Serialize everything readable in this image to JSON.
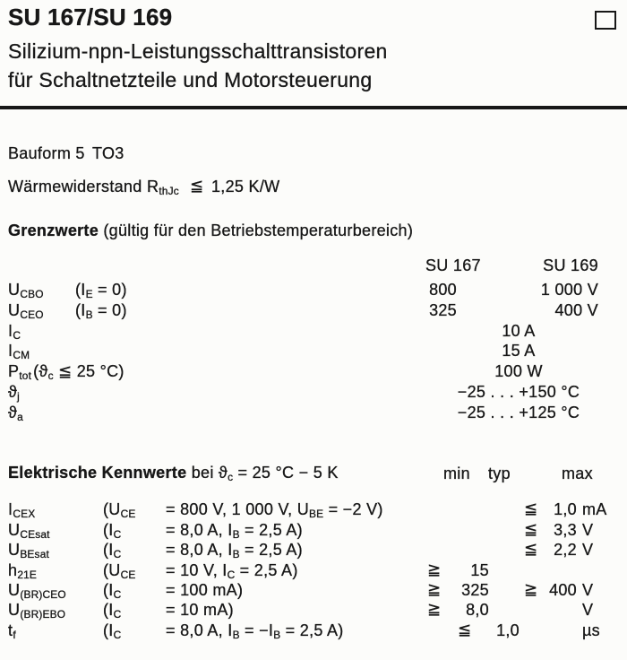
{
  "theme": {
    "ink": "#171717",
    "paper": "#fcfcfa"
  },
  "header": {
    "title": "SU 167/SU 169",
    "subtitle1": "Silizium-npn-Leistungsschalttransistoren",
    "subtitle2": "für Schaltnetzteile und Motorsteuerung"
  },
  "package": {
    "label": "Bauform 5",
    "value": "TO3"
  },
  "thermal": {
    "label": "Wärmewiderstand",
    "symbol": [
      {
        "t": "R"
      },
      {
        "s": "thJc"
      }
    ],
    "relation": "≦",
    "value": "1,25 K/W"
  },
  "grenzwerte": {
    "heading": "Grenzwerte",
    "heading_note": "(gültig für den Betriebstemperaturbereich)",
    "col1": "SU 167",
    "col2": "SU 169",
    "rows": [
      {
        "sym": [
          {
            "t": "U"
          },
          {
            "s": "CBO"
          }
        ],
        "cond": [
          {
            "t": "(I"
          },
          {
            "s": "E"
          },
          {
            "t": " = 0)"
          }
        ],
        "v167": "800",
        "v169": "1 000 V",
        "vspan": ""
      },
      {
        "sym": [
          {
            "t": "U"
          },
          {
            "s": "CEO"
          }
        ],
        "cond": [
          {
            "t": "(I"
          },
          {
            "s": "B"
          },
          {
            "t": " = 0)"
          }
        ],
        "v167": "325",
        "v169": "400 V",
        "vspan": ""
      },
      {
        "sym": [
          {
            "t": "I"
          },
          {
            "s": "C"
          }
        ],
        "cond": [],
        "v167": "",
        "v169": "",
        "vspan": "10 A"
      },
      {
        "sym": [
          {
            "t": "I"
          },
          {
            "s": "CM"
          }
        ],
        "cond": [],
        "v167": "",
        "v169": "",
        "vspan": "15 A"
      },
      {
        "sym": [
          {
            "t": "P"
          },
          {
            "s": "tot"
          }
        ],
        "cond": [
          {
            "t": " (ϑ"
          },
          {
            "s": "c"
          },
          {
            "t": " ≦ 25 °C)"
          }
        ],
        "v167": "",
        "v169": "",
        "vspan": "100 W"
      },
      {
        "sym": [
          {
            "t": "ϑ"
          },
          {
            "s": "j"
          }
        ],
        "cond": [],
        "v167": "",
        "v169": "",
        "vspan": "−25 . . . +150 °C"
      },
      {
        "sym": [
          {
            "t": "ϑ"
          },
          {
            "s": "a"
          }
        ],
        "cond": [],
        "v167": "",
        "v169": "",
        "vspan": "−25 . . . +125 °C"
      }
    ]
  },
  "kennwerte": {
    "heading": "Elektrische Kennwerte",
    "heading_note": [
      {
        "t": " bei ϑ"
      },
      {
        "s": "c"
      },
      {
        "t": " = 25 °C − 5 K"
      }
    ],
    "col_min": "min",
    "col_typ": "typ",
    "col_max": "max",
    "rows": [
      {
        "sym": [
          {
            "t": "I"
          },
          {
            "s": "CEX"
          }
        ],
        "cond_a": [
          {
            "t": "(U"
          },
          {
            "s": "CE"
          }
        ],
        "cond_b": [
          {
            "t": "= 800 V, 1 000 V, U"
          },
          {
            "s": "BE"
          },
          {
            "t": " = −2 V)"
          }
        ],
        "min_rel": "",
        "min_val": "",
        "typ_rel": "",
        "typ_val": "",
        "max_rel": "≦",
        "max_val": "1,0",
        "max_unit": "mA"
      },
      {
        "sym": [
          {
            "t": "U"
          },
          {
            "s": "CEsat"
          }
        ],
        "cond_a": [
          {
            "t": "(I"
          },
          {
            "s": "C"
          }
        ],
        "cond_b": [
          {
            "t": "= 8,0 A, I"
          },
          {
            "s": "B"
          },
          {
            "t": " = 2,5 A)"
          }
        ],
        "min_rel": "",
        "min_val": "",
        "typ_rel": "",
        "typ_val": "",
        "max_rel": "≦",
        "max_val": "3,3",
        "max_unit": "V"
      },
      {
        "sym": [
          {
            "t": "U"
          },
          {
            "s": "BEsat"
          }
        ],
        "cond_a": [
          {
            "t": "(I"
          },
          {
            "s": "C"
          }
        ],
        "cond_b": [
          {
            "t": "= 8,0 A, I"
          },
          {
            "s": "B"
          },
          {
            "t": " = 2,5 A)"
          }
        ],
        "min_rel": "",
        "min_val": "",
        "typ_rel": "",
        "typ_val": "",
        "max_rel": "≦",
        "max_val": "2,2",
        "max_unit": "V"
      },
      {
        "sym": [
          {
            "t": "h"
          },
          {
            "s": "21E"
          }
        ],
        "cond_a": [
          {
            "t": "(U"
          },
          {
            "s": "CE"
          }
        ],
        "cond_b": [
          {
            "t": "= 10 V, I"
          },
          {
            "s": "C"
          },
          {
            "t": " = 2,5 A)"
          }
        ],
        "min_rel": "≧",
        "min_val": "15",
        "typ_rel": "",
        "typ_val": "",
        "max_rel": "",
        "max_val": "",
        "max_unit": ""
      },
      {
        "sym": [
          {
            "t": "U"
          },
          {
            "s": "(BR)CEO"
          }
        ],
        "cond_a": [
          {
            "t": "(I"
          },
          {
            "s": "C"
          }
        ],
        "cond_b": [
          {
            "t": "= 100 mA)"
          }
        ],
        "min_rel": "≧",
        "min_val": "325",
        "typ_rel": "",
        "typ_val": "",
        "max_rel": "≧",
        "max_val": "400",
        "max_unit": "V"
      },
      {
        "sym": [
          {
            "t": "U"
          },
          {
            "s": "(BR)EBO"
          }
        ],
        "cond_a": [
          {
            "t": "(I"
          },
          {
            "s": "C"
          }
        ],
        "cond_b": [
          {
            "t": "= 10 mA)"
          }
        ],
        "min_rel": "≧",
        "min_val": "8,0",
        "typ_rel": "",
        "typ_val": "",
        "max_rel": "",
        "max_val": "",
        "max_unit": "V"
      },
      {
        "sym": [
          {
            "t": "t"
          },
          {
            "s": "f"
          }
        ],
        "cond_a": [
          {
            "t": "(I"
          },
          {
            "s": "C"
          }
        ],
        "cond_b": [
          {
            "t": "= 8,0 A, I"
          },
          {
            "s": "B"
          },
          {
            "t": " = −I"
          },
          {
            "s": "B"
          },
          {
            "t": " = 2,5 A)"
          }
        ],
        "min_rel": "",
        "min_val": "",
        "typ_rel": "≦",
        "typ_val": "1,0",
        "max_rel": "",
        "max_val": "",
        "max_unit": "µs"
      }
    ]
  }
}
